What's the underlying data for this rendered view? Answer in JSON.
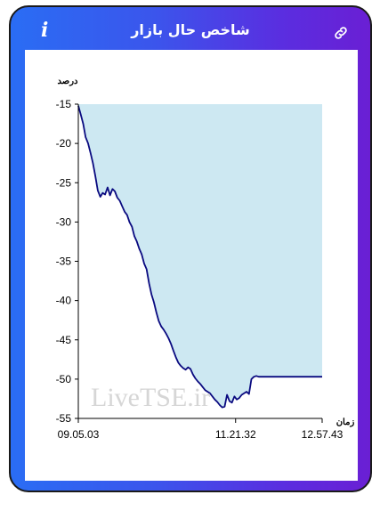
{
  "header": {
    "title": "شاخص حال بازار",
    "info_label": "i",
    "info_icon": "info-icon",
    "link_icon": "link-icon"
  },
  "colors": {
    "gradient_start": "#2a6df4",
    "gradient_end": "#6a1fd4",
    "area_fill": "#cde8f2",
    "line": "#0a0a80"
  },
  "watermark": "LiveTSE.ir",
  "chart_data": {
    "type": "area",
    "ylabel": "درصد",
    "xlabel": "زمان",
    "ylim": [
      -55,
      -15
    ],
    "yticks": [
      -15,
      -20,
      -25,
      -30,
      -35,
      -40,
      -45,
      -50,
      -55
    ],
    "x_tick_labels": [
      "09.05.03",
      "11.21.32",
      "12.57.43"
    ],
    "x_tick_positions": [
      0,
      0.645,
      1
    ],
    "fill_baseline": -15,
    "series": [
      {
        "x": [
          0,
          0.01,
          0.02,
          0.03,
          0.04,
          0.05,
          0.06,
          0.07,
          0.08,
          0.09,
          0.1,
          0.11,
          0.12,
          0.13,
          0.14,
          0.15,
          0.16,
          0.17,
          0.18,
          0.19,
          0.2,
          0.21,
          0.22,
          0.23,
          0.24,
          0.25,
          0.26,
          0.27,
          0.28,
          0.29,
          0.3,
          0.31,
          0.32,
          0.33,
          0.34,
          0.35,
          0.36,
          0.37,
          0.38,
          0.39,
          0.4,
          0.41,
          0.42,
          0.43,
          0.44,
          0.45,
          0.46,
          0.47,
          0.48,
          0.49,
          0.5,
          0.51,
          0.52,
          0.53,
          0.54,
          0.55,
          0.56,
          0.57,
          0.58,
          0.59,
          0.6,
          0.61,
          0.62,
          0.63,
          0.64,
          0.65,
          0.66,
          0.67,
          0.68,
          0.69,
          0.7,
          0.71,
          0.72,
          0.73,
          0.74,
          0.75,
          0.76,
          0.77,
          0.78,
          0.79,
          0.8,
          0.81,
          0.82,
          0.83,
          0.84,
          0.85,
          0.86,
          0.87,
          0.88,
          0.89,
          0.9,
          0.91,
          0.92,
          0.93,
          0.94,
          0.95,
          1.0
        ],
        "y": [
          -15.2,
          -16.3,
          -17.5,
          -19.2,
          -20.0,
          -21.2,
          -22.5,
          -24.2,
          -26.0,
          -26.8,
          -26.3,
          -26.5,
          -25.6,
          -26.6,
          -25.8,
          -26.1,
          -26.9,
          -27.3,
          -28.0,
          -28.7,
          -29.1,
          -30.0,
          -30.6,
          -31.8,
          -32.5,
          -33.4,
          -34.1,
          -35.3,
          -36.0,
          -37.8,
          -39.2,
          -40.2,
          -41.5,
          -42.6,
          -43.3,
          -43.7,
          -44.2,
          -44.8,
          -45.5,
          -46.4,
          -47.2,
          -47.9,
          -48.3,
          -48.6,
          -48.8,
          -48.5,
          -48.7,
          -49.4,
          -49.9,
          -50.3,
          -50.6,
          -51.0,
          -51.4,
          -51.6,
          -51.8,
          -52.2,
          -52.6,
          -52.9,
          -53.3,
          -53.6,
          -53.5,
          -52.0,
          -52.8,
          -53.0,
          -52.2,
          -52.6,
          -52.4,
          -52.0,
          -51.8,
          -51.6,
          -51.9,
          -50.0,
          -49.7,
          -49.6,
          -49.7,
          -49.7,
          -49.7,
          -49.7,
          -49.7,
          -49.7,
          -49.7,
          -49.7,
          -49.7,
          -49.7,
          -49.7,
          -49.7,
          -49.7,
          -49.7,
          -49.7,
          -49.7,
          -49.7,
          -49.7,
          -49.7,
          -49.7,
          -49.7,
          -49.7,
          -49.7
        ]
      }
    ]
  }
}
